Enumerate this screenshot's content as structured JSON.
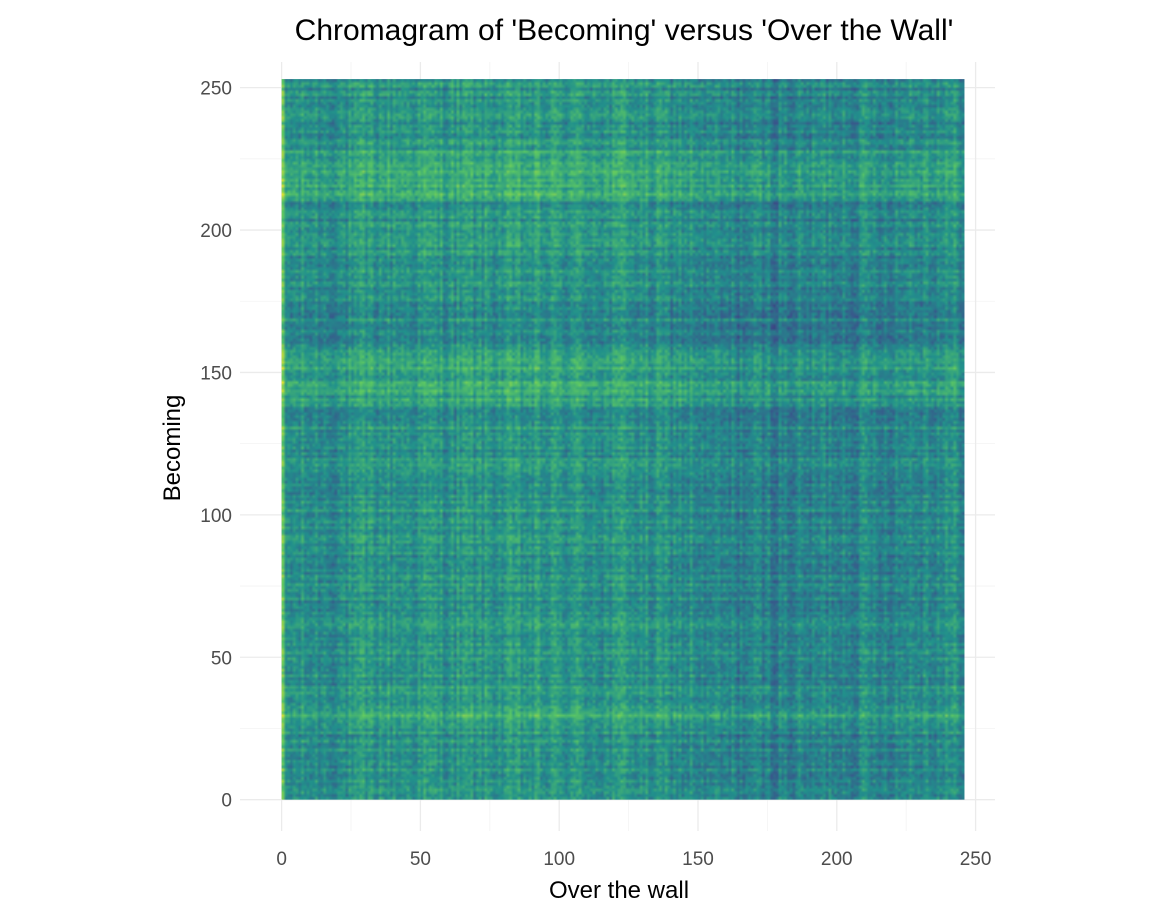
{
  "chart_data": {
    "type": "heatmap",
    "title": "Chromagram of 'Becoming' versus 'Over the Wall'",
    "xlabel": "Over the wall",
    "ylabel": "Becoming",
    "xlim": [
      -15,
      257
    ],
    "ylim": [
      -11,
      259
    ],
    "x_extent": [
      0,
      246
    ],
    "y_extent": [
      0,
      253
    ],
    "x_ticks": [
      0,
      50,
      100,
      150,
      200,
      250
    ],
    "y_ticks": [
      0,
      50,
      100,
      150,
      200,
      250
    ],
    "x_tick_labels": [
      "0",
      "50",
      "100",
      "150",
      "200",
      "250"
    ],
    "y_tick_labels": [
      "0",
      "50",
      "100",
      "150",
      "200",
      "250"
    ],
    "x_minor_ticks": [
      25,
      75,
      125,
      175,
      225
    ],
    "y_minor_ticks": [
      25,
      75,
      125,
      175,
      225
    ],
    "grid": true,
    "legend": "none",
    "colormap": [
      "#440154",
      "#3b528b",
      "#21918c",
      "#5ec962",
      "#fde725"
    ],
    "value_range": [
      0,
      1
    ],
    "column_profile": [
      {
        "from": 0,
        "to": 28,
        "value": 0.5
      },
      {
        "from": 28,
        "to": 115,
        "value": 0.56
      },
      {
        "from": 115,
        "to": 122,
        "value": 0.52
      },
      {
        "from": 122,
        "to": 127,
        "value": 0.62
      },
      {
        "from": 127,
        "to": 150,
        "value": 0.5
      },
      {
        "from": 150,
        "to": 195,
        "value": 0.4
      },
      {
        "from": 195,
        "to": 225,
        "value": 0.45
      },
      {
        "from": 225,
        "to": 246,
        "value": 0.5
      }
    ],
    "row_profile": [
      {
        "from": 0,
        "to": 5,
        "value": 0.45
      },
      {
        "from": 5,
        "to": 28,
        "value": 0.47
      },
      {
        "from": 28,
        "to": 33,
        "value": 0.72
      },
      {
        "from": 33,
        "to": 60,
        "value": 0.5
      },
      {
        "from": 60,
        "to": 100,
        "value": 0.47
      },
      {
        "from": 100,
        "to": 140,
        "value": 0.5
      },
      {
        "from": 140,
        "to": 160,
        "value": 0.62
      },
      {
        "from": 160,
        "to": 185,
        "value": 0.45
      },
      {
        "from": 185,
        "to": 210,
        "value": 0.5
      },
      {
        "from": 210,
        "to": 228,
        "value": 0.68
      },
      {
        "from": 228,
        "to": 253,
        "value": 0.47
      }
    ]
  }
}
